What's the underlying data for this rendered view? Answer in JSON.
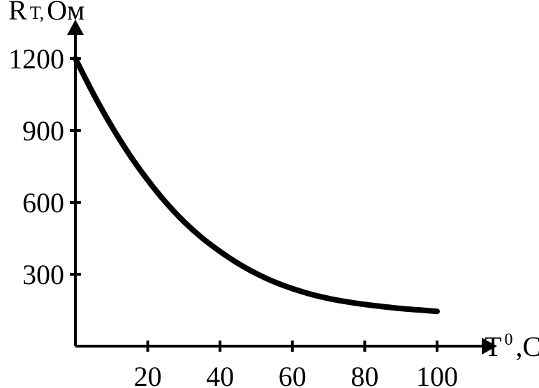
{
  "chart_data": {
    "type": "line",
    "xlabel": {
      "main": "T",
      "sup": "0",
      "suffix": ",C"
    },
    "ylabel": {
      "main": "R",
      "sub": "T,",
      "suffix": " Ом"
    },
    "xlim": [
      0,
      100
    ],
    "ylim": [
      0,
      1200
    ],
    "xticks": [
      20,
      40,
      60,
      80,
      100
    ],
    "yticks": [
      300,
      600,
      900,
      1200
    ],
    "xtick_labels": [
      "20",
      "40",
      "60",
      "80",
      "100"
    ],
    "ytick_labels": [
      "300",
      "600",
      "900",
      "1200"
    ],
    "grid": false,
    "series": [
      {
        "x": [
          0,
          5,
          10,
          15,
          20,
          25,
          30,
          35,
          40,
          45,
          50,
          55,
          60,
          65,
          70,
          75,
          80,
          85,
          90,
          95,
          100
        ],
        "y": [
          1200,
          1052,
          918,
          798,
          693,
          600,
          520,
          452,
          395,
          345,
          303,
          268,
          240,
          217,
          199,
          185,
          174,
          165,
          157,
          151,
          145
        ]
      }
    ],
    "colors": {
      "axis": "#000000",
      "line": "#000000"
    }
  }
}
